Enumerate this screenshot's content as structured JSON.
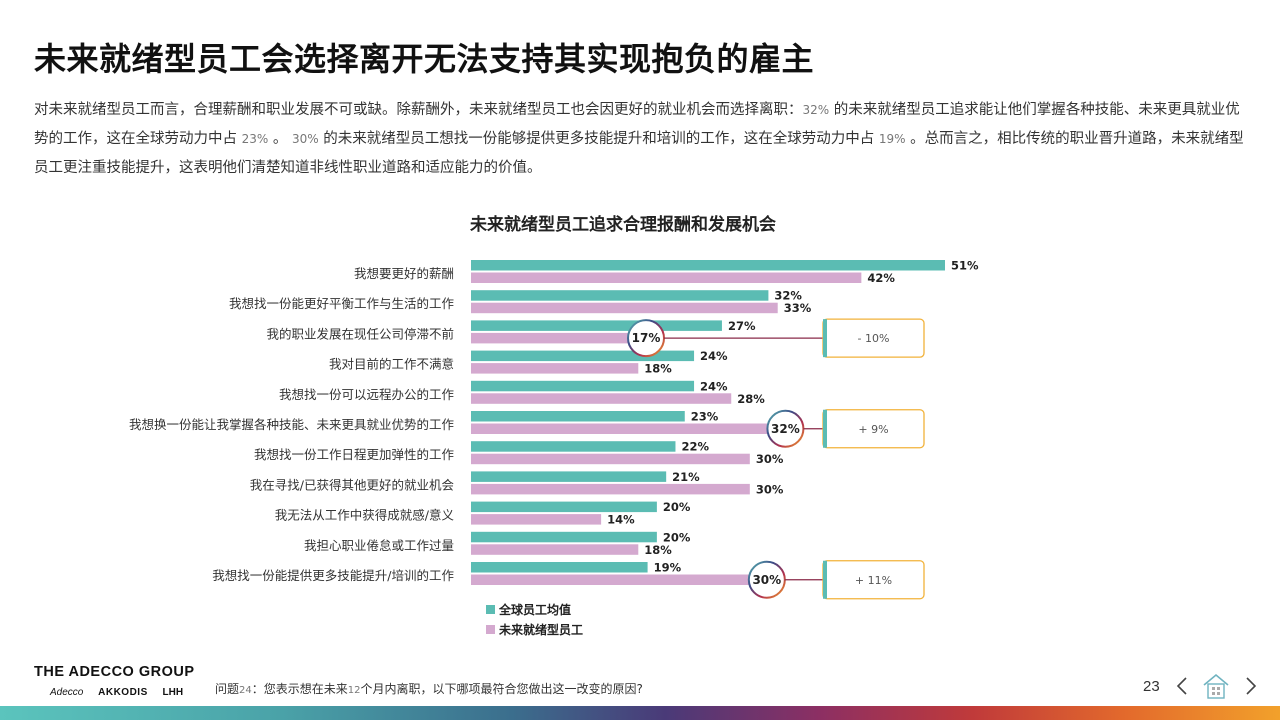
{
  "title": "未来就绪型员工会选择离开无法支持其实现抱负的雇主",
  "intro": {
    "p1": "对未来就绪型员工而言，合理薪酬和职业发展不可或缺。除薪酬外，未来就绪型员工也会因更好的就业机会而选择离职：",
    "n1": "32%",
    "p2": " 的未来就绪型员工追求能让他们掌握各种技能、未来更具就业优势的工作，这在全球劳动力中占 ",
    "n2": "23%",
    "p3": " 。 ",
    "n3": "30%",
    "p4": " 的未来就绪型员工想找一份能够提供更多技能提升和培训的工作，这在全球劳动力中占 ",
    "n4": "19%",
    "p5": " 。总而言之，相比传统的职业晋升道路，未来就绪型员工更注重技能提升，这表明他们清楚知道非线性职业道路和适应能力的价值。"
  },
  "chart_data": {
    "type": "bar",
    "orientation": "horizontal",
    "title": "未来就绪型员工追求合理报酬和发展机会",
    "unit": "%",
    "xlim": [
      0,
      51
    ],
    "grid": false,
    "legend_position": "bottom-left",
    "categories": [
      "我想要更好的薪酬",
      "我想找一份能更好平衡工作与生活的工作",
      "我的职业发展在现任公司停滞不前",
      "我对目前的工作不满意",
      "我想找一份可以远程办公的工作",
      "我想换一份能让我掌握各种技能、未来更具就业优势的工作",
      "我想找一份工作日程更加弹性的工作",
      "我在寻找/已获得其他更好的就业机会",
      "我无法从工作中获得成就感/意义",
      "我担心职业倦怠或工作过量",
      "我想找一份能提供更多技能提升/培训的工作"
    ],
    "series": [
      {
        "name": "全球员工均值",
        "color": "#5bbcb3",
        "values": [
          51,
          32,
          27,
          24,
          24,
          23,
          22,
          21,
          20,
          20,
          19
        ]
      },
      {
        "name": "未来就绪型员工",
        "color": "#d4a9cf",
        "values": [
          42,
          33,
          17,
          18,
          28,
          32,
          30,
          30,
          14,
          18,
          30
        ]
      }
    ],
    "value_labels": [
      [
        "51%",
        "32%",
        "27%",
        "24%",
        "24%",
        "23%",
        "22%",
        "21%",
        "20%",
        "20%",
        "19%"
      ],
      [
        "42%",
        "33%",
        "17%",
        "18%",
        "28%",
        "32%",
        "30%",
        "30%",
        "14%",
        "18%",
        "30%"
      ]
    ],
    "annotations": [
      {
        "category_index": 2,
        "series_index": 1,
        "label": "17%",
        "callout": "- 10%"
      },
      {
        "category_index": 5,
        "series_index": 1,
        "label": "32%",
        "callout": "+ 9%"
      },
      {
        "category_index": 10,
        "series_index": 1,
        "label": "30%",
        "callout": "+ 11%"
      }
    ]
  },
  "footer": {
    "logo": "THE ADECCO GROUP",
    "brands": [
      "Adecco",
      "AKKODIS",
      "LHH"
    ],
    "question_prefix": "问题",
    "question_num": "24",
    "question_mid": "：您表示想在未来",
    "question_months": "12",
    "question_suffix": "个月内离职，以下哪项最符合您做出这一改变的原因?",
    "page_number": "23"
  },
  "colors": {
    "teal": "#5bbcb3",
    "pink": "#d4a9cf",
    "callout_border": "#f2b23a",
    "connector": "#8a2a48"
  },
  "icons": {
    "prev": "chevron-left-icon",
    "home": "home-icon",
    "next": "chevron-right-icon"
  }
}
